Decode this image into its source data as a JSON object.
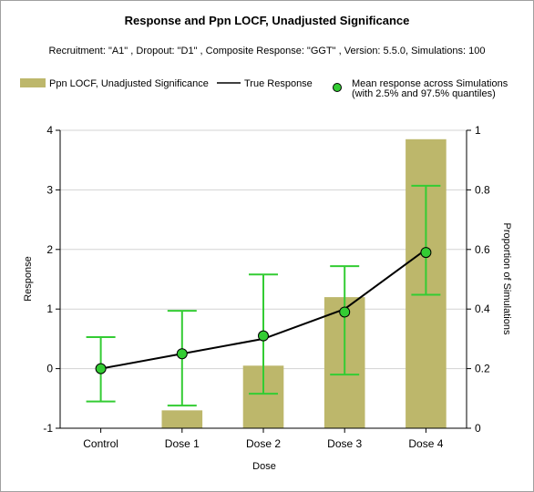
{
  "chart_data": {
    "type": "bar",
    "title": "Response and Ppn LOCF, Unadjusted Significance",
    "subtitle": "Recruitment: \"A1\" , Dropout: \"D1\" , Composite Response: \"GGT\" , Version: 5.5.0, Simulations: 100",
    "categories": [
      "Control",
      "Dose 1",
      "Dose 2",
      "Dose 3",
      "Dose 4"
    ],
    "xlabel": "Dose",
    "ylabel": "Response",
    "y2label": "Proportion of Simulations",
    "ylim": [
      -1,
      4
    ],
    "y2lim": [
      0,
      1
    ],
    "yticks": [
      "-1",
      "0",
      "1",
      "2",
      "3",
      "4"
    ],
    "y2ticks": [
      "0",
      "0.2",
      "0.4",
      "0.6",
      "0.8",
      "1"
    ],
    "grid": "horizontal",
    "legend_placement": "top",
    "series": [
      {
        "name": "Ppn LOCF, Unadjusted Significance",
        "kind": "bar",
        "axis": "secondary",
        "color": "#bdb76b",
        "values": [
          0.0,
          0.06,
          0.21,
          0.44,
          0.97
        ]
      },
      {
        "name": "True Response",
        "kind": "line",
        "axis": "primary",
        "color": "#000000",
        "values": [
          0.0,
          0.25,
          0.5,
          1.0,
          2.0
        ]
      },
      {
        "name": "Mean response across Simulations",
        "name_line2": "(with 2.5% and 97.5% quantiles)",
        "kind": "points_with_errorbars",
        "axis": "primary",
        "color": "#33cc33",
        "values": [
          0.0,
          0.25,
          0.55,
          0.95,
          1.95
        ],
        "lower": [
          -0.55,
          -0.62,
          -0.42,
          -0.1,
          1.24
        ],
        "upper": [
          0.53,
          0.97,
          1.58,
          1.72,
          3.07
        ]
      }
    ]
  }
}
